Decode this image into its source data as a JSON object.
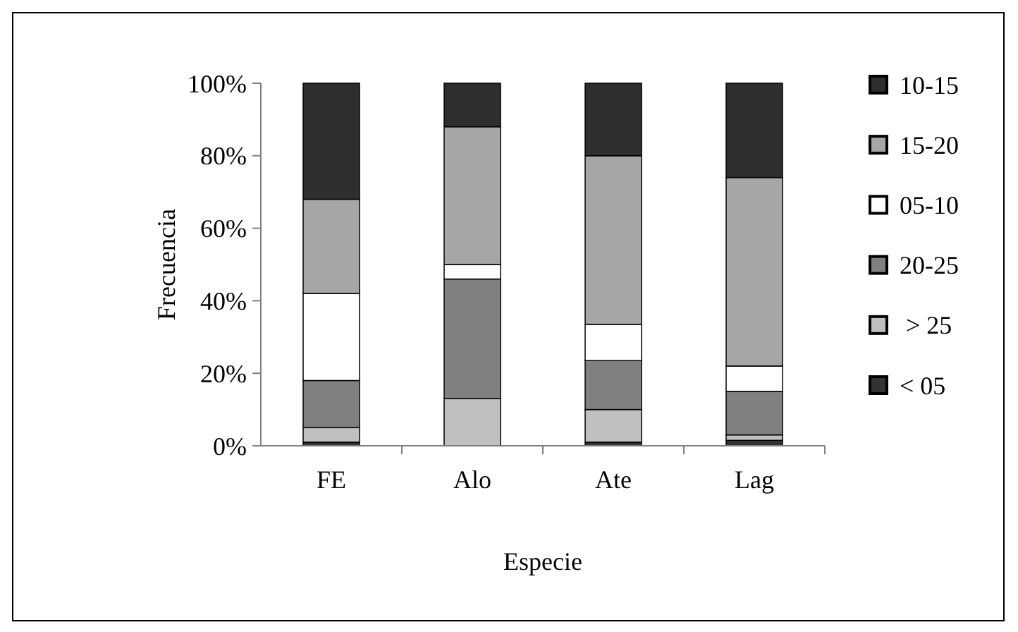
{
  "chart_data": {
    "type": "bar",
    "stacked": true,
    "xlabel": "Especie",
    "ylabel": "Frecuencia",
    "categories": [
      "FE",
      "Alo",
      "Ate",
      "Lag"
    ],
    "series": [
      {
        "name": "< 05",
        "color": "#333333",
        "values": [
          1,
          0,
          1,
          1.5
        ]
      },
      {
        "name": " > 25",
        "color": "#c0c0c0",
        "values": [
          4,
          13,
          9,
          1.5
        ]
      },
      {
        "name": "20-25",
        "color": "#808080",
        "values": [
          13,
          33,
          13.5,
          12
        ]
      },
      {
        "name": "05-10",
        "color": "#ffffff",
        "values": [
          24,
          4,
          10,
          7
        ]
      },
      {
        "name": "15-20",
        "color": "#a6a6a6",
        "values": [
          26,
          38,
          46.5,
          52
        ]
      },
      {
        "name": "10-15",
        "color": "#2e2e2e",
        "values": [
          32,
          12,
          20,
          26
        ]
      }
    ],
    "ylim": [
      0,
      100
    ],
    "yticks": [
      {
        "value": 0,
        "label": "0%"
      },
      {
        "value": 20,
        "label": "20%"
      },
      {
        "value": 40,
        "label": "40%"
      },
      {
        "value": 60,
        "label": "60%"
      },
      {
        "value": 80,
        "label": "80%"
      },
      {
        "value": 100,
        "label": "100%"
      }
    ],
    "legend": "right",
    "grid": false
  }
}
